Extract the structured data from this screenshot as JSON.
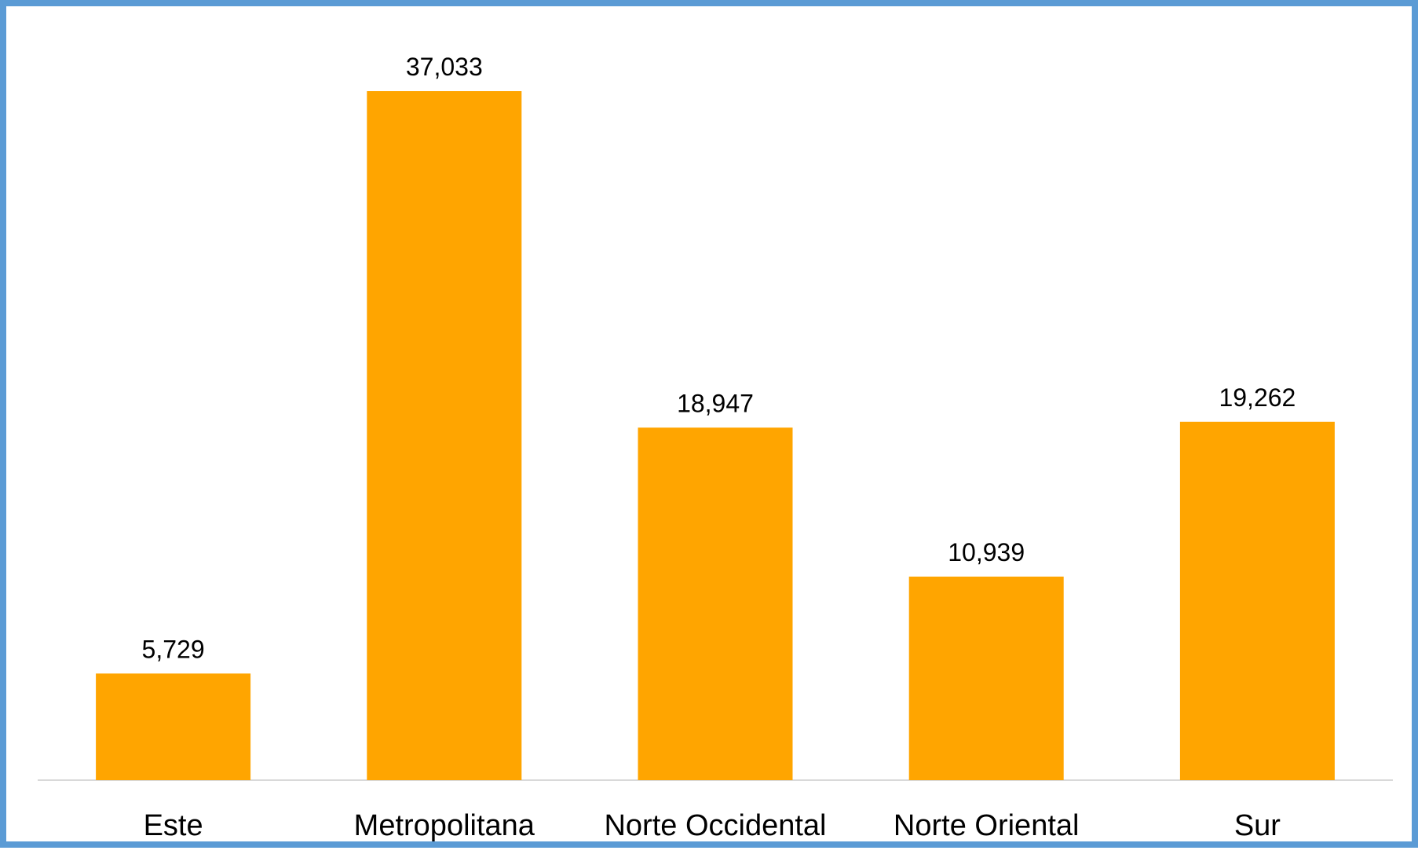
{
  "colors": {
    "frame": "#5b9bd5",
    "bar": "#ffa500",
    "axis": "#d9d9d9",
    "text": "#000000"
  },
  "chart_data": {
    "type": "bar",
    "categories": [
      "Este",
      "Metropolitana",
      "Norte Occidental",
      "Norte Oriental",
      "Sur"
    ],
    "values": [
      5729,
      37033,
      18947,
      10939,
      19262
    ],
    "value_labels": [
      "5,729",
      "37,033",
      "18,947",
      "10,939",
      "19,262"
    ],
    "title": "",
    "xlabel": "",
    "ylabel": "",
    "ylim": [
      0,
      37033
    ],
    "grid": false,
    "legend": "none",
    "data_labels": "above-bars"
  }
}
